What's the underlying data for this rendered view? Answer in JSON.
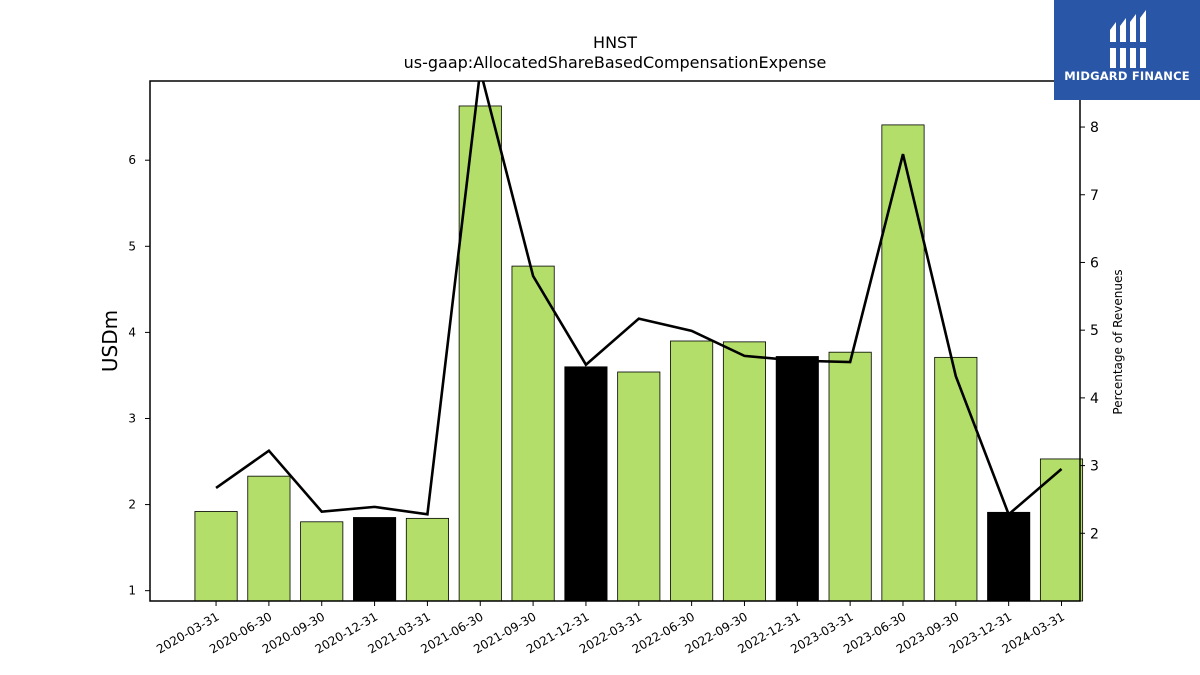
{
  "chart_data": {
    "type": "bar",
    "title": "HNST",
    "subtitle": "us-gaap:AllocatedShareBasedCompensationExpense",
    "ylabel": "USDm",
    "y2label": "Percentage of Revenues",
    "ylim": [
      0.88,
      6.92
    ],
    "y2lim": [
      1.0,
      8.68
    ],
    "yticks": [
      1,
      2,
      3,
      4,
      5,
      6
    ],
    "y2ticks": [
      2,
      3,
      4,
      5,
      6,
      7,
      8
    ],
    "categories": [
      "2020-03-31",
      "2020-06-30",
      "2020-09-30",
      "2020-12-31",
      "2021-03-31",
      "2021-06-30",
      "2021-09-30",
      "2021-12-31",
      "2022-03-31",
      "2022-06-30",
      "2022-09-30",
      "2022-12-31",
      "2023-03-31",
      "2023-06-30",
      "2023-09-30",
      "2023-12-31",
      "2024-03-31"
    ],
    "series": [
      {
        "type": "bar",
        "values": [
          1.92,
          2.33,
          1.8,
          1.85,
          1.84,
          6.63,
          4.77,
          3.6,
          3.54,
          3.9,
          3.89,
          3.72,
          3.77,
          6.41,
          3.71,
          1.91,
          2.53
        ],
        "colors": [
          "#b3de69",
          "#b3de69",
          "#b3de69",
          "#000000",
          "#b3de69",
          "#b3de69",
          "#b3de69",
          "#000000",
          "#b3de69",
          "#b3de69",
          "#b3de69",
          "#000000",
          "#b3de69",
          "#b3de69",
          "#b3de69",
          "#000000",
          "#b3de69"
        ]
      },
      {
        "type": "line",
        "axis": "right",
        "color": "#000000",
        "values": [
          2.67,
          3.22,
          2.32,
          2.39,
          2.28,
          8.84,
          5.8,
          4.49,
          5.17,
          4.99,
          4.62,
          4.55,
          4.53,
          7.6,
          4.32,
          2.28,
          2.95
        ]
      }
    ],
    "grid": false
  },
  "logo": {
    "text": "MIDGARD FINANCE",
    "icon": "midgard-logo-icon",
    "background": "#2a56a8"
  }
}
